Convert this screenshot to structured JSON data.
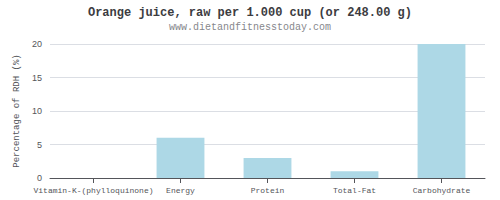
{
  "chart_data": {
    "type": "bar",
    "title": "Orange juice, raw per 1.000 cup (or 248.00 g)",
    "subtitle": "www.dietandfitnesstoday.com",
    "categories": [
      "Vitamin-K-(phylloquinone)",
      "Energy",
      "Protein",
      "Total-Fat",
      "Carbohydrate"
    ],
    "values": [
      0,
      6,
      3,
      1,
      20
    ],
    "color": "#add8e6",
    "ylabel": "Percentage of RDH (%)",
    "ylim": [
      0,
      20
    ],
    "yticks": [
      0,
      5,
      10,
      15,
      20
    ],
    "grid": true
  }
}
